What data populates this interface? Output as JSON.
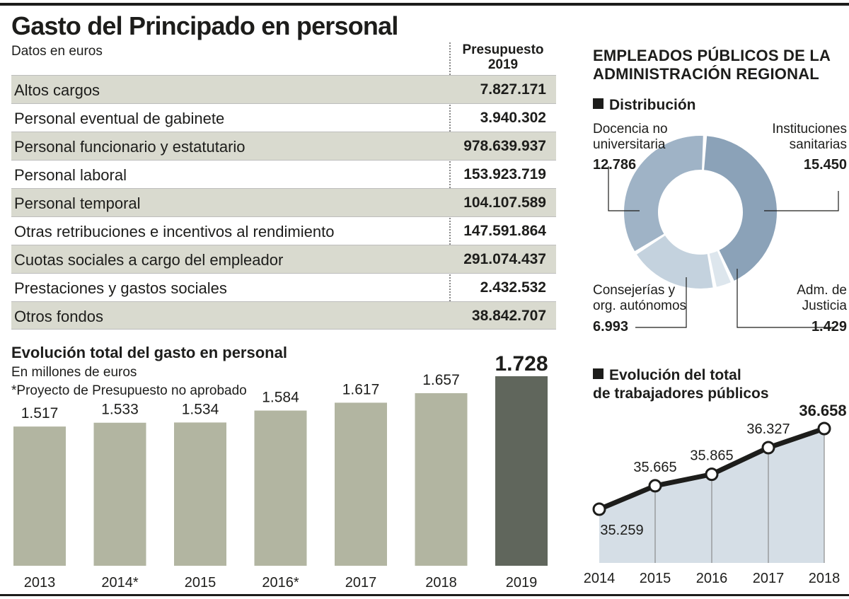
{
  "title": "Gasto del Principado en personal",
  "table": {
    "unit_note": "Datos en euros",
    "column_header_line1": "Presupuesto",
    "column_header_line2": "2019",
    "rows": [
      {
        "label": "Altos cargos",
        "value": "7.827.171"
      },
      {
        "label": "Personal eventual de gabinete",
        "value": "3.940.302"
      },
      {
        "label": "Personal funcionario y estatutario",
        "value": "978.639.937"
      },
      {
        "label": "Personal laboral",
        "value": "153.923.719"
      },
      {
        "label": "Personal temporal",
        "value": "104.107.589"
      },
      {
        "label": "Otras retribuciones e incentivos al rendimiento",
        "value": "147.591.864"
      },
      {
        "label": "Cuotas sociales a cargo del empleador",
        "value": "291.074.437"
      },
      {
        "label": "Prestaciones y gastos sociales",
        "value": "2.432.532"
      },
      {
        "label": "Otros fondos",
        "value": "38.842.707"
      }
    ]
  },
  "employees": {
    "title_line1": "EMPLEADOS PÚBLICOS DE LA",
    "title_line2": "ADMINISTRACIÓN REGIONAL",
    "distribution_title": "Distribución",
    "trend_title_line1": "Evolución del total",
    "trend_title_line2": "de trabajadores públicos"
  },
  "bar_section": {
    "title": "Evolución total del gasto en personal",
    "unit": "En millones de euros",
    "note": "*Proyecto de Presupuesto no aprobado"
  },
  "colors": {
    "bar": "#b2b5a1",
    "bar_highlight": "#60665c",
    "donut_dark": "#8ba2b8",
    "donut_mid": "#9fb3c6",
    "donut_light": "#c4d2de",
    "donut_lightest": "#dde6ed",
    "area_fill": "#d5dee6"
  },
  "chart_data": [
    {
      "type": "pie",
      "title": "Distribución",
      "labels": [
        "Instituciones sanitarias",
        "Adm. de Justicia",
        "Consejerías y org. autónomos",
        "Docencia no universitaria"
      ],
      "label_lines": [
        [
          "Instituciones",
          "sanitarias"
        ],
        [
          "Adm. de",
          "Justicia"
        ],
        [
          "Consejerías y",
          "org. autónomos"
        ],
        [
          "Docencia no",
          "universitaria"
        ]
      ],
      "values": [
        15450,
        1429,
        6993,
        12786
      ],
      "value_labels": [
        "15.450",
        "1.429",
        "6.993",
        "12.786"
      ]
    },
    {
      "type": "bar",
      "title": "Evolución total del gasto en personal",
      "categories": [
        "2013",
        "2014*",
        "2015",
        "2016*",
        "2017",
        "2018",
        "2019"
      ],
      "values": [
        1517,
        1533,
        1534,
        1584,
        1617,
        1657,
        1728
      ],
      "value_labels": [
        "1.517",
        "1.533",
        "1.534",
        "1.584",
        "1.617",
        "1.657",
        "1.728"
      ],
      "highlight_index": 6,
      "ylabel": "En millones de euros",
      "ylim": [
        0,
        1728
      ]
    },
    {
      "type": "area",
      "title": "Evolución del total de trabajadores públicos",
      "x": [
        "2014",
        "2015",
        "2016",
        "2017",
        "2018"
      ],
      "values": [
        35259,
        35665,
        35865,
        36327,
        36658
      ],
      "value_labels": [
        "35.259",
        "35.665",
        "35.865",
        "36.327",
        "36.658"
      ],
      "ylim": [
        34100,
        36658
      ]
    }
  ]
}
